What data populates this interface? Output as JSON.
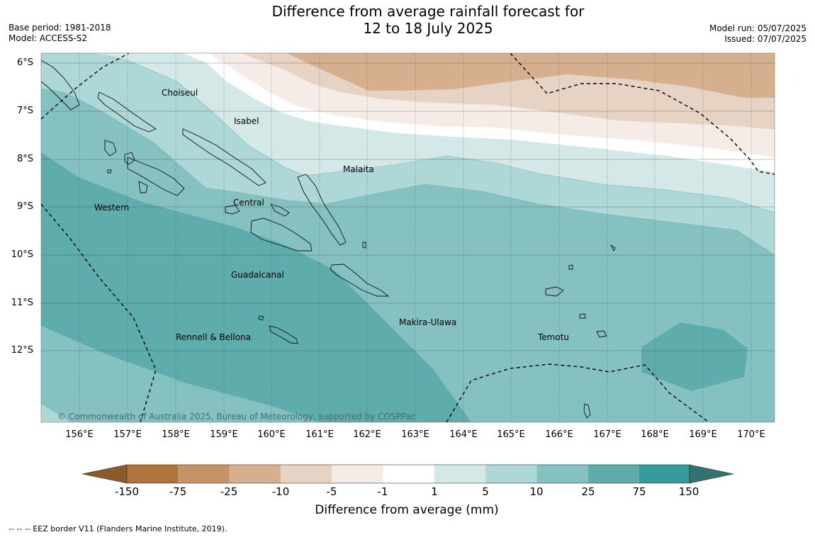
{
  "title": {
    "line1": "Difference from average rainfall forecast for",
    "line2": "12 to 18 July 2025"
  },
  "meta": {
    "base_period": "Base period: 1981-2018",
    "model": "Model: ACCESS-S2",
    "model_run": "Model run: 05/07/2025",
    "issued": "Issued: 07/07/2025"
  },
  "map": {
    "lat_labels": [
      "6°S",
      "7°S",
      "8°S",
      "9°S",
      "10°S",
      "11°S",
      "12°S"
    ],
    "lon_labels": [
      "156°E",
      "157°E",
      "158°E",
      "159°E",
      "160°E",
      "161°E",
      "162°E",
      "163°E",
      "164°E",
      "165°E",
      "166°E",
      "167°E",
      "168°E",
      "169°E",
      "170°E"
    ],
    "regions": {
      "choiseul": "Choiseul",
      "isabel": "Isabel",
      "malaita": "Malaita",
      "western": "Western",
      "central": "Central",
      "guadalcanal": "Guadalcanal",
      "makira_ulawa": "Makira-Ulawa",
      "rennell_bellona": "Rennell & Bellona",
      "temotu": "Temotu"
    },
    "copyright": "© Commonwealth of Australia 2025, Bureau of Meteorology, supported by COSPPac"
  },
  "colorbar": {
    "labels": [
      "-150",
      "-75",
      "-25",
      "-10",
      "-5",
      "-1",
      "1",
      "5",
      "10",
      "25",
      "75",
      "150"
    ],
    "colors": {
      "below_min": "#8a5a2a",
      "-150_-75": "#ad753d",
      "-75_-25": "#c49367",
      "-25_-10": "#d6b08e",
      "-10_-5": "#e6d3c3",
      "-5_-1": "#f5ebe7",
      "-1_1": "#ffffff",
      "1_5": "#d5e8e8",
      "5_10": "#aed7d7",
      "10_25": "#85c1c1",
      "25_75": "#5eacac",
      "75_150": "#349b9b",
      "above_max": "#347272"
    },
    "title": "Difference from average (mm)"
  },
  "footnote": "--  --  -- EEZ border V11 (Flanders Marine Institute, 2019)."
}
